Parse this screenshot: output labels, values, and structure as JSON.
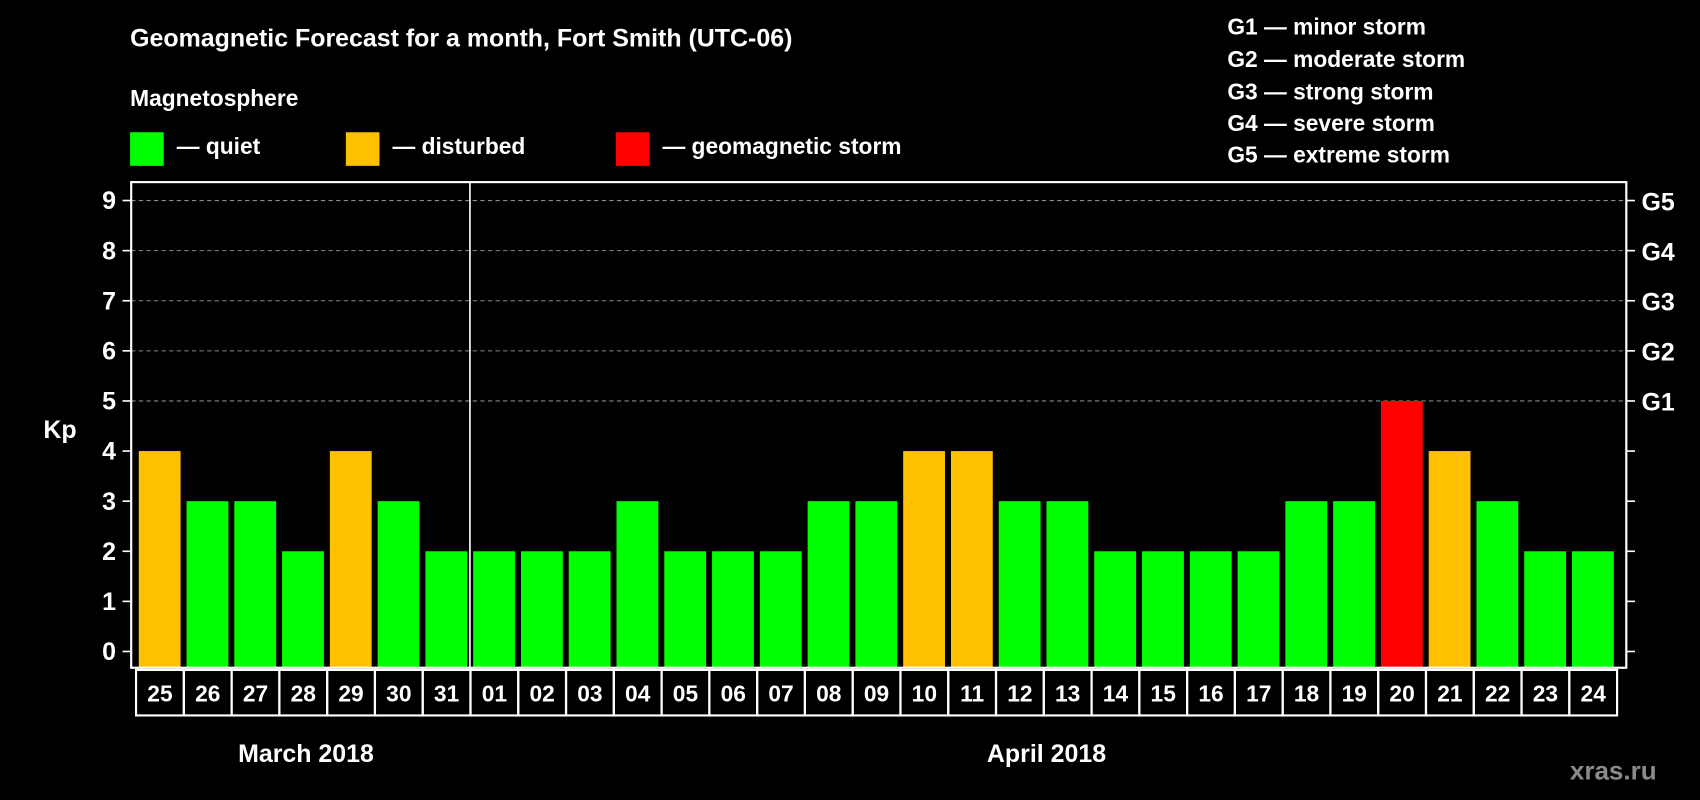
{
  "title": "Geomagnetic Forecast for a month, Fort Smith (UTC-06)",
  "legend": {
    "heading": "Magnetosphere",
    "items": [
      {
        "label": "— quiet",
        "color": "#00ff00"
      },
      {
        "label": "— disturbed",
        "color": "#ffc000"
      },
      {
        "label": "— geomagnetic storm",
        "color": "#ff0000"
      }
    ]
  },
  "storm_scale": [
    "G1 — minor storm",
    "G2 — moderate storm",
    "G3 — strong storm",
    "G4 — severe storm",
    "G5 — extreme storm"
  ],
  "watermark": "xras.ru",
  "chart_data": {
    "type": "bar",
    "title": "Geomagnetic Forecast for a month, Fort Smith (UTC-06)",
    "ylabel": "Kp",
    "ylim": [
      0,
      9
    ],
    "yticks": [
      "0",
      "1",
      "2",
      "3",
      "4",
      "5",
      "6",
      "7",
      "8",
      "9"
    ],
    "right_ticks": [
      {
        "value": 5,
        "label": "G1"
      },
      {
        "value": 6,
        "label": "G2"
      },
      {
        "value": 7,
        "label": "G3"
      },
      {
        "value": 8,
        "label": "G4"
      },
      {
        "value": 9,
        "label": "G5"
      }
    ],
    "grid": "dashed horizontal at 5-9",
    "months": [
      {
        "label": "March 2018",
        "days": 7
      },
      {
        "label": "April 2018",
        "days": 24
      }
    ],
    "categories": [
      "25",
      "26",
      "27",
      "28",
      "29",
      "30",
      "31",
      "01",
      "02",
      "03",
      "04",
      "05",
      "06",
      "07",
      "08",
      "09",
      "10",
      "11",
      "12",
      "13",
      "14",
      "15",
      "16",
      "17",
      "18",
      "19",
      "20",
      "21",
      "22",
      "23",
      "24"
    ],
    "values": [
      4,
      3,
      3,
      2,
      4,
      3,
      2,
      2,
      2,
      2,
      3,
      2,
      2,
      2,
      3,
      3,
      4,
      4,
      3,
      3,
      2,
      2,
      2,
      2,
      3,
      3,
      5,
      4,
      3,
      2,
      2
    ],
    "colors": {
      "quiet": "#00ff00",
      "disturbed": "#ffc000",
      "storm": "#ff0000"
    }
  }
}
